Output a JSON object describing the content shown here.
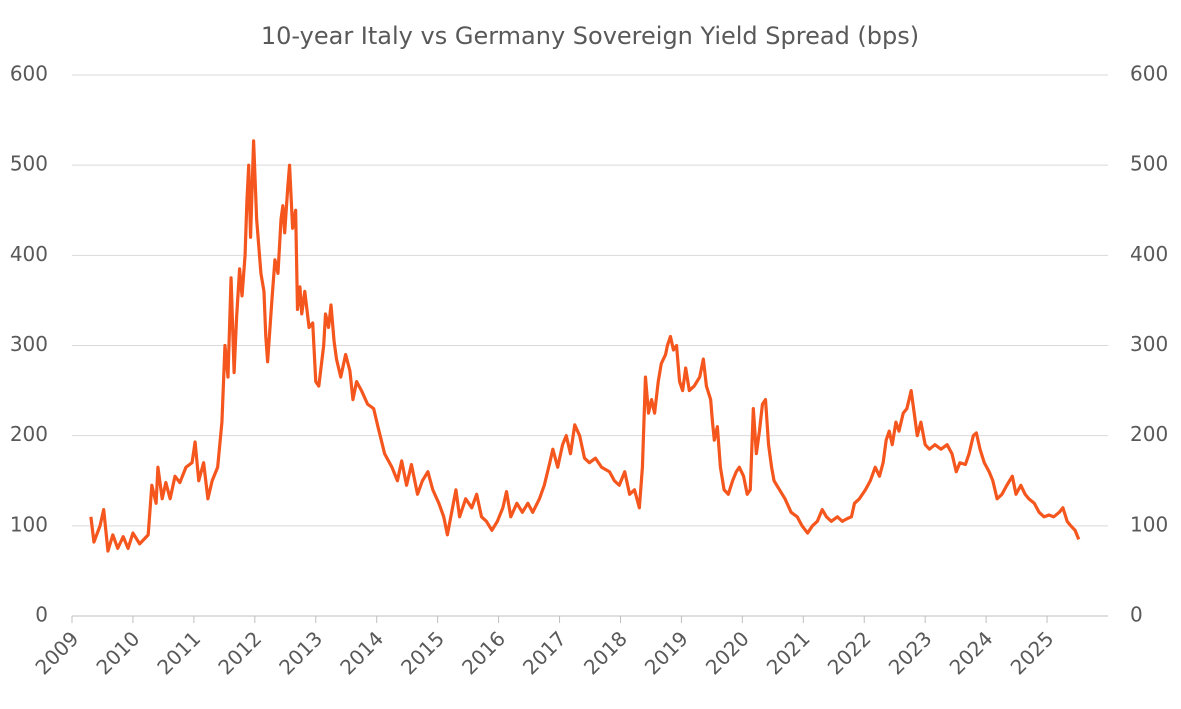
{
  "chart_data": {
    "type": "line",
    "title": "10-year Italy vs Germany Sovereign Yield Spread (bps)",
    "color": "#f4561d",
    "grid": true,
    "xlim": [
      2009,
      2026
    ],
    "xticks": [
      2009,
      2010,
      2011,
      2012,
      2013,
      2014,
      2015,
      2016,
      2017,
      2018,
      2019,
      2020,
      2021,
      2022,
      2023,
      2024,
      2025
    ],
    "ylim": [
      0,
      600
    ],
    "yticks": [
      0,
      100,
      200,
      300,
      400,
      500,
      600
    ],
    "y2lim": [
      0,
      600
    ],
    "y2ticks": [
      0,
      100,
      200,
      300,
      400,
      500,
      600
    ],
    "x": [
      2009.31,
      2009.36,
      2009.46,
      2009.52,
      2009.59,
      2009.67,
      2009.75,
      2009.84,
      2009.92,
      2010.0,
      2010.11,
      2010.25,
      2010.31,
      2010.38,
      2010.41,
      2010.48,
      2010.54,
      2010.61,
      2010.69,
      2010.77,
      2010.87,
      2010.97,
      2011.02,
      2011.08,
      2011.16,
      2011.23,
      2011.3,
      2011.39,
      2011.46,
      2011.51,
      2011.56,
      2011.61,
      2011.66,
      2011.7,
      2011.75,
      2011.79,
      2011.84,
      2011.87,
      2011.9,
      2011.93,
      2011.98,
      2012.03,
      2012.1,
      2012.15,
      2012.18,
      2012.21,
      2012.28,
      2012.33,
      2012.38,
      2012.43,
      2012.46,
      2012.49,
      2012.54,
      2012.57,
      2012.62,
      2012.67,
      2012.7,
      2012.74,
      2012.77,
      2012.82,
      2012.89,
      2012.95,
      2013.0,
      2013.05,
      2013.13,
      2013.16,
      2013.21,
      2013.25,
      2013.3,
      2013.34,
      2013.41,
      2013.49,
      2013.56,
      2013.61,
      2013.67,
      2013.75,
      2013.85,
      2013.95,
      2014.02,
      2014.13,
      2014.25,
      2014.34,
      2014.41,
      2014.49,
      2014.57,
      2014.67,
      2014.75,
      2014.84,
      2014.92,
      2015.02,
      2015.1,
      2015.16,
      2015.23,
      2015.3,
      2015.36,
      2015.46,
      2015.56,
      2015.64,
      2015.72,
      2015.8,
      2015.89,
      2015.98,
      2016.07,
      2016.13,
      2016.2,
      2016.3,
      2016.39,
      2016.48,
      2016.56,
      2016.67,
      2016.75,
      2016.84,
      2016.89,
      2016.97,
      2017.05,
      2017.11,
      2017.18,
      2017.25,
      2017.33,
      2017.41,
      2017.49,
      2017.59,
      2017.69,
      2017.82,
      2017.9,
      2017.98,
      2018.07,
      2018.15,
      2018.23,
      2018.31,
      2018.36,
      2018.41,
      2018.46,
      2018.51,
      2018.56,
      2018.62,
      2018.67,
      2018.74,
      2018.77,
      2018.82,
      2018.87,
      2018.92,
      2018.97,
      2019.02,
      2019.07,
      2019.13,
      2019.21,
      2019.3,
      2019.36,
      2019.41,
      2019.48,
      2019.51,
      2019.54,
      2019.59,
      2019.64,
      2019.7,
      2019.77,
      2019.84,
      2019.9,
      2019.95,
      2020.02,
      2020.08,
      2020.13,
      2020.18,
      2020.23,
      2020.28,
      2020.33,
      2020.38,
      2020.43,
      2020.48,
      2020.52,
      2020.61,
      2020.7,
      2020.8,
      2020.9,
      2020.98,
      2021.07,
      2021.15,
      2021.23,
      2021.31,
      2021.38,
      2021.46,
      2021.56,
      2021.64,
      2021.72,
      2021.79,
      2021.84,
      2021.92,
      2022.02,
      2022.1,
      2022.18,
      2022.25,
      2022.31,
      2022.36,
      2022.41,
      2022.46,
      2022.52,
      2022.57,
      2022.64,
      2022.7,
      2022.77,
      2022.82,
      2022.87,
      2022.93,
      2023.0,
      2023.07,
      2023.16,
      2023.26,
      2023.36,
      2023.44,
      2023.51,
      2023.57,
      2023.66,
      2023.72,
      2023.79,
      2023.84,
      2023.9,
      2023.97,
      2024.05,
      2024.11,
      2024.18,
      2024.26,
      2024.34,
      2024.43,
      2024.49,
      2024.57,
      2024.64,
      2024.7,
      2024.79,
      2024.87,
      2024.95,
      2025.03,
      2025.11,
      2025.2,
      2025.26,
      2025.33,
      2025.39,
      2025.46,
      2025.52
    ],
    "values": [
      110,
      82,
      100,
      118,
      72,
      90,
      75,
      88,
      75,
      92,
      80,
      90,
      145,
      125,
      165,
      130,
      148,
      130,
      155,
      148,
      165,
      170,
      193,
      150,
      170,
      130,
      150,
      165,
      215,
      300,
      265,
      375,
      270,
      330,
      385,
      355,
      400,
      460,
      500,
      420,
      527,
      440,
      380,
      360,
      310,
      282,
      350,
      395,
      380,
      440,
      455,
      425,
      475,
      500,
      430,
      450,
      340,
      365,
      335,
      360,
      320,
      325,
      260,
      255,
      300,
      335,
      320,
      345,
      305,
      285,
      265,
      290,
      272,
      240,
      260,
      250,
      235,
      230,
      210,
      180,
      165,
      150,
      172,
      145,
      168,
      135,
      150,
      160,
      140,
      125,
      110,
      90,
      115,
      140,
      110,
      130,
      120,
      135,
      110,
      105,
      95,
      105,
      120,
      138,
      110,
      125,
      115,
      125,
      115,
      130,
      145,
      170,
      185,
      165,
      190,
      200,
      180,
      212,
      200,
      175,
      170,
      175,
      165,
      160,
      150,
      145,
      160,
      135,
      140,
      120,
      165,
      265,
      225,
      240,
      225,
      260,
      280,
      290,
      300,
      310,
      295,
      300,
      260,
      250,
      275,
      250,
      255,
      265,
      285,
      255,
      240,
      215,
      195,
      210,
      165,
      140,
      135,
      150,
      160,
      165,
      155,
      135,
      140,
      230,
      180,
      205,
      235,
      240,
      190,
      165,
      150,
      140,
      130,
      115,
      110,
      100,
      92,
      100,
      105,
      118,
      110,
      105,
      110,
      105,
      108,
      110,
      125,
      130,
      140,
      150,
      165,
      155,
      170,
      195,
      205,
      190,
      215,
      205,
      225,
      230,
      250,
      225,
      200,
      215,
      190,
      185,
      190,
      185,
      190,
      180,
      160,
      170,
      168,
      180,
      200,
      203,
      185,
      170,
      160,
      150,
      130,
      135,
      145,
      155,
      135,
      145,
      135,
      130,
      125,
      115,
      110,
      112,
      110,
      115,
      120,
      105,
      100,
      95,
      85
    ]
  }
}
